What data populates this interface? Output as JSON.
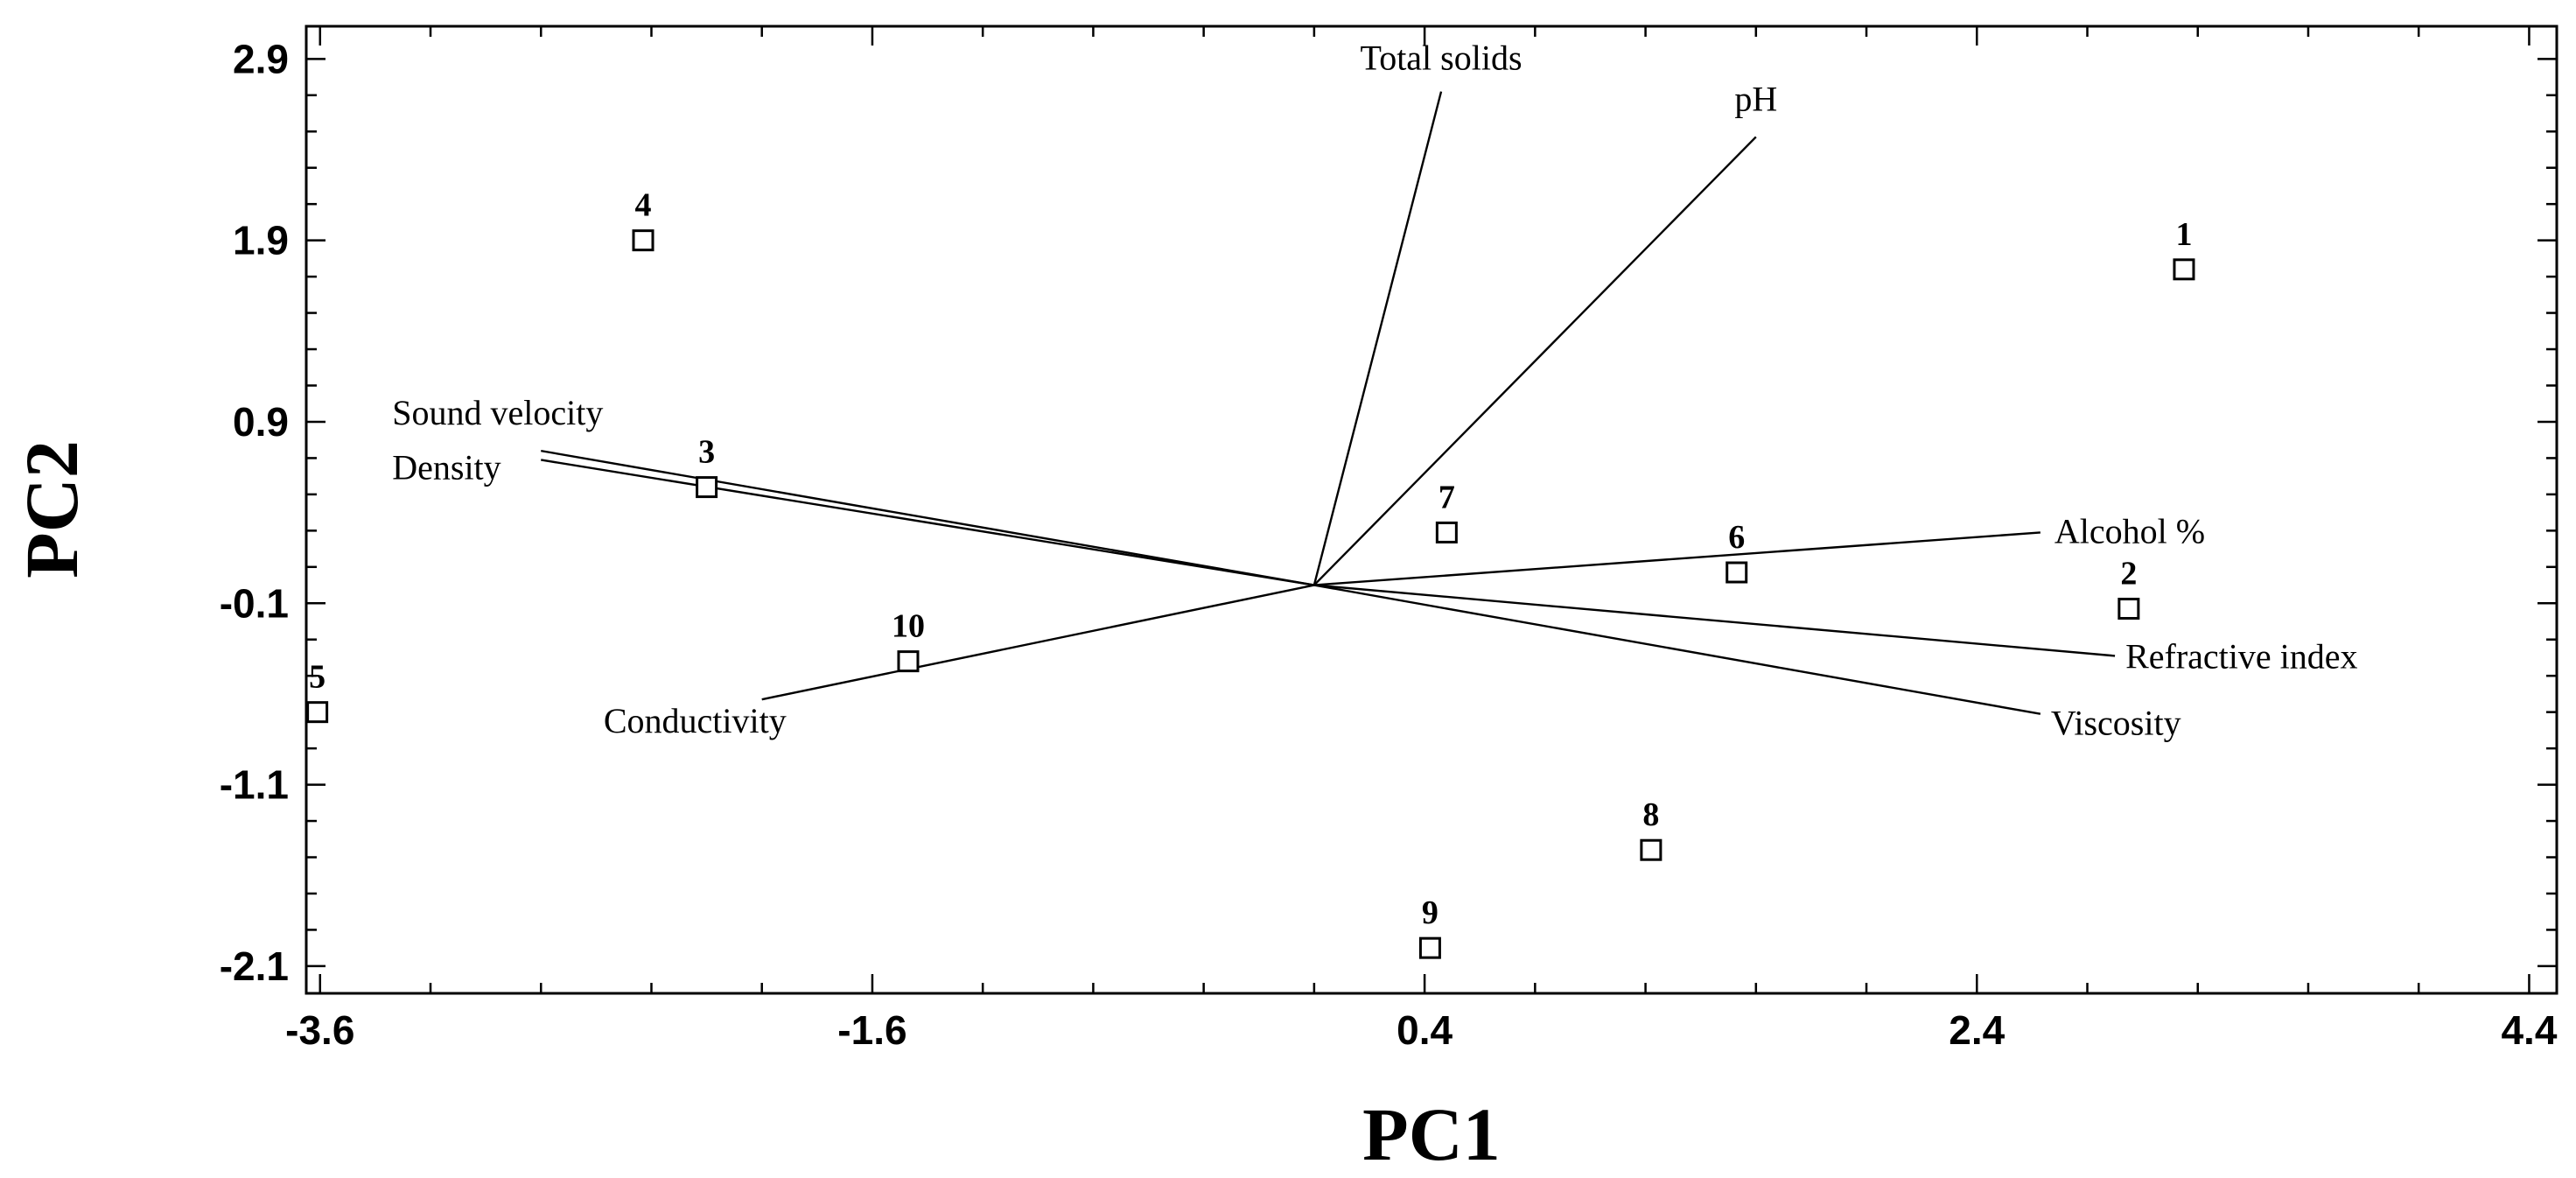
{
  "chart_data": {
    "type": "scatter",
    "title": "",
    "xlabel": "PC1",
    "ylabel": "PC2",
    "xlim": [
      -3.65,
      4.5
    ],
    "ylim": [
      -2.25,
      3.08
    ],
    "x_ticks": [
      -3.6,
      -1.6,
      0.4,
      2.4,
      4.4
    ],
    "x_tick_labels": [
      "-3.6",
      "-1.6",
      "0.4",
      "2.4",
      "4.4"
    ],
    "y_ticks": [
      2.9,
      1.9,
      0.9,
      -0.1,
      -1.1,
      -2.1
    ],
    "y_tick_labels": [
      "2.9",
      "1.9",
      "0.9",
      "-0.1",
      "-1.1",
      "-2.1"
    ],
    "grid": false,
    "points": [
      {
        "label": "1",
        "x": 3.15,
        "y": 1.74
      },
      {
        "label": "2",
        "x": 2.95,
        "y": -0.13
      },
      {
        "label": "3",
        "x": -2.2,
        "y": 0.54
      },
      {
        "label": "4",
        "x": -2.43,
        "y": 1.9
      },
      {
        "label": "5",
        "x": -3.61,
        "y": -0.7
      },
      {
        "label": "6",
        "x": 1.53,
        "y": 0.07
      },
      {
        "label": "7",
        "x": 0.48,
        "y": 0.29
      },
      {
        "label": "8",
        "x": 1.22,
        "y": -1.46
      },
      {
        "label": "9",
        "x": 0.42,
        "y": -2.0
      },
      {
        "label": "10",
        "x": -1.47,
        "y": -0.42
      }
    ],
    "vectors": {
      "origin": [
        0.0,
        -0.0
      ],
      "items": [
        {
          "name": "Total solids",
          "x": 0.46,
          "y": 2.72
        },
        {
          "name": "pH",
          "x": 1.6,
          "y": 2.47
        },
        {
          "name": "Sound velocity",
          "x": -2.8,
          "y": 0.74
        },
        {
          "name": "Density",
          "x": -2.8,
          "y": 0.69
        },
        {
          "name": "Alcohol %",
          "x": 2.63,
          "y": 0.29
        },
        {
          "name": "Refractive index",
          "x": 2.9,
          "y": -0.39
        },
        {
          "name": "Viscosity",
          "x": 2.63,
          "y": -0.71
        },
        {
          "name": "Conductivity",
          "x": -2.0,
          "y": -0.63
        }
      ]
    }
  }
}
